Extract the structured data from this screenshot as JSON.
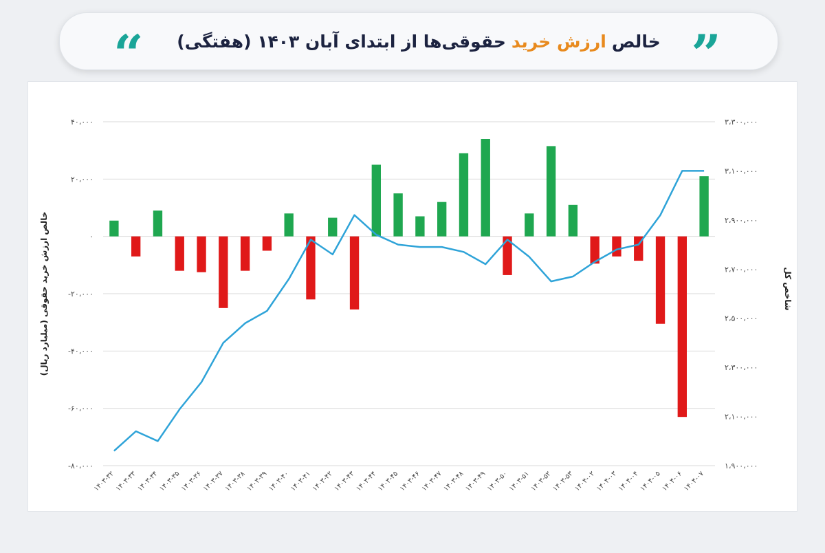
{
  "header": {
    "title_before": "خالص",
    "title_accent": "ارزش خرید",
    "title_after": "حقوقی‌ها از ابتدای آبان ۱۴۰۳ (هفتگی)",
    "accent_color": "#e88a1e",
    "quote_color": "#1aa598",
    "open_quote": "“",
    "close_quote": "”"
  },
  "chart_data": {
    "type": "bar",
    "title": "خالص ارزش خرید حقوقی‌ها از ابتدای آبان ۱۴۰۳ (هفتگی)",
    "categories": [
      "۱۴۰۳-۳۲",
      "۱۴۰۳-۳۳",
      "۱۴۰۳-۳۴",
      "۱۴۰۳-۳۵",
      "۱۴۰۳-۳۶",
      "۱۴۰۳-۳۷",
      "۱۴۰۳-۳۸",
      "۱۴۰۳-۳۹",
      "۱۴۰۳-۴۰",
      "۱۴۰۳-۴۱",
      "۱۴۰۳-۴۲",
      "۱۴۰۳-۴۳",
      "۱۴۰۳-۴۴",
      "۱۴۰۳-۴۵",
      "۱۴۰۳-۴۶",
      "۱۴۰۳-۴۷",
      "۱۴۰۳-۴۸",
      "۱۴۰۳-۴۹",
      "۱۴۰۳-۵۰",
      "۱۴۰۳-۵۱",
      "۱۴۰۳-۵۲",
      "۱۴۰۳-۵۳",
      "۱۴۰۴-۰۲",
      "۱۴۰۴-۰۳",
      "۱۴۰۴-۰۴",
      "۱۴۰۴-۰۵",
      "۱۴۰۴-۰۶",
      "۱۴۰۴-۰۷"
    ],
    "series": [
      {
        "axis": "left",
        "type": "bar",
        "values": [
          5500,
          -7000,
          9000,
          -12000,
          -12500,
          -25000,
          -12000,
          -5000,
          8000,
          -22000,
          6500,
          -25500,
          25000,
          15000,
          7000,
          12000,
          29000,
          34000,
          -13500,
          8000,
          31500,
          11000,
          -9500,
          -7000,
          -8500,
          -30500,
          -63000,
          21000
        ],
        "positive_color": "#1fa750",
        "negative_color": "#e01919"
      },
      {
        "axis": "right",
        "type": "line",
        "color": "#2ea3d8",
        "values": [
          1960000,
          2040000,
          2000000,
          2130000,
          2240000,
          2400000,
          2480000,
          2530000,
          2660000,
          2820000,
          2760000,
          2920000,
          2840000,
          2800000,
          2790000,
          2790000,
          2770000,
          2720000,
          2820000,
          2750000,
          2650000,
          2670000,
          2730000,
          2780000,
          2800000,
          2920000,
          3100000,
          3100000
        ]
      }
    ],
    "left_axis": {
      "label": "خالص ارزش خرید حقوقی (میلیارد ریال)",
      "ylim": [
        -80000,
        40000
      ],
      "ticks": [
        40000,
        20000,
        0,
        -20000,
        -40000,
        -60000,
        -80000
      ],
      "tick_labels": [
        "۴۰،۰۰۰",
        "۲۰،۰۰۰",
        "۰",
        "-۲۰،۰۰۰",
        "-۴۰،۰۰۰",
        "-۶۰،۰۰۰",
        "-۸۰،۰۰۰"
      ]
    },
    "right_axis": {
      "label": "شاخص کل",
      "ylim": [
        1900000,
        3300000
      ],
      "ticks": [
        3300000,
        3100000,
        2900000,
        2700000,
        2500000,
        2300000,
        2100000,
        1900000
      ],
      "tick_labels": [
        "۳،۳۰۰،۰۰۰",
        "۳،۱۰۰،۰۰۰",
        "۲،۹۰۰،۰۰۰",
        "۲،۷۰۰،۰۰۰",
        "۲،۵۰۰،۰۰۰",
        "۲،۳۰۰،۰۰۰",
        "۲،۱۰۰،۰۰۰",
        "۱،۹۰۰،۰۰۰"
      ]
    },
    "grid": true,
    "legend": "none"
  }
}
